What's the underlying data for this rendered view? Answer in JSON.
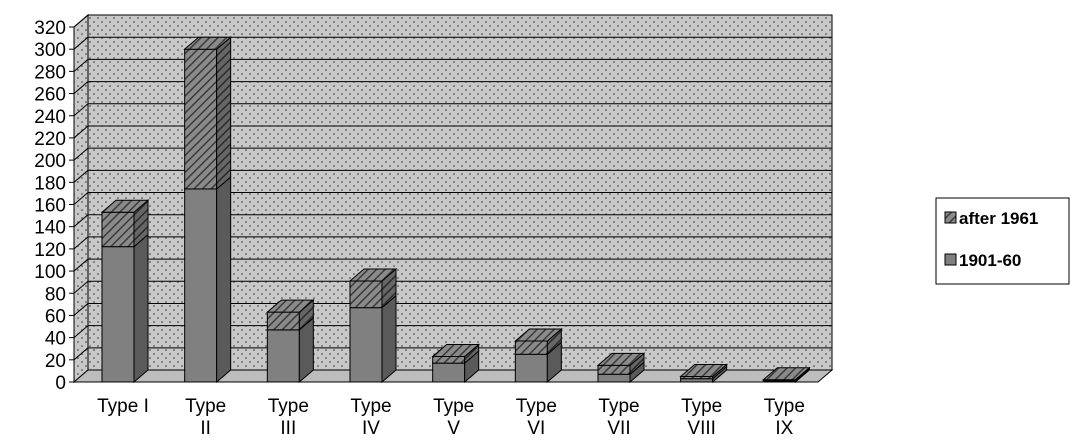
{
  "chart_data": {
    "type": "bar",
    "stacked": true,
    "three_d": true,
    "categories": [
      [
        "Type I"
      ],
      [
        "Type",
        "II"
      ],
      [
        "Type",
        "III"
      ],
      [
        "Type",
        "IV"
      ],
      [
        "Type",
        "V"
      ],
      [
        "Type",
        "VI"
      ],
      [
        "Type",
        "VII"
      ],
      [
        "Type",
        "VIII"
      ],
      [
        "Type",
        "IX"
      ]
    ],
    "series": [
      {
        "name": "1901-60",
        "values": [
          122,
          174,
          47,
          67,
          17,
          25,
          7,
          3,
          1
        ]
      },
      {
        "name": "after 1961",
        "values": [
          31,
          126,
          16,
          24,
          6,
          12,
          8,
          2,
          1
        ]
      }
    ],
    "yticks": [
      "0",
      "20",
      "40",
      "60",
      "80",
      "100",
      "120",
      "140",
      "160",
      "180",
      "200",
      "220",
      "240",
      "260",
      "280",
      "300",
      "320"
    ],
    "ylim": [
      0,
      320
    ],
    "gridlines": true,
    "legend_position": "right",
    "title": "",
    "xlabel": "",
    "ylabel": ""
  },
  "colors": {
    "plot_background": "#c8c8c8",
    "grid": "#000000",
    "bar_front": "#808080",
    "bar_side": "#5a5a5a",
    "bar_top": "#9a9a9a",
    "hatch_light": "#8a8a8a",
    "hatch_dark": "#3a3a3a"
  }
}
